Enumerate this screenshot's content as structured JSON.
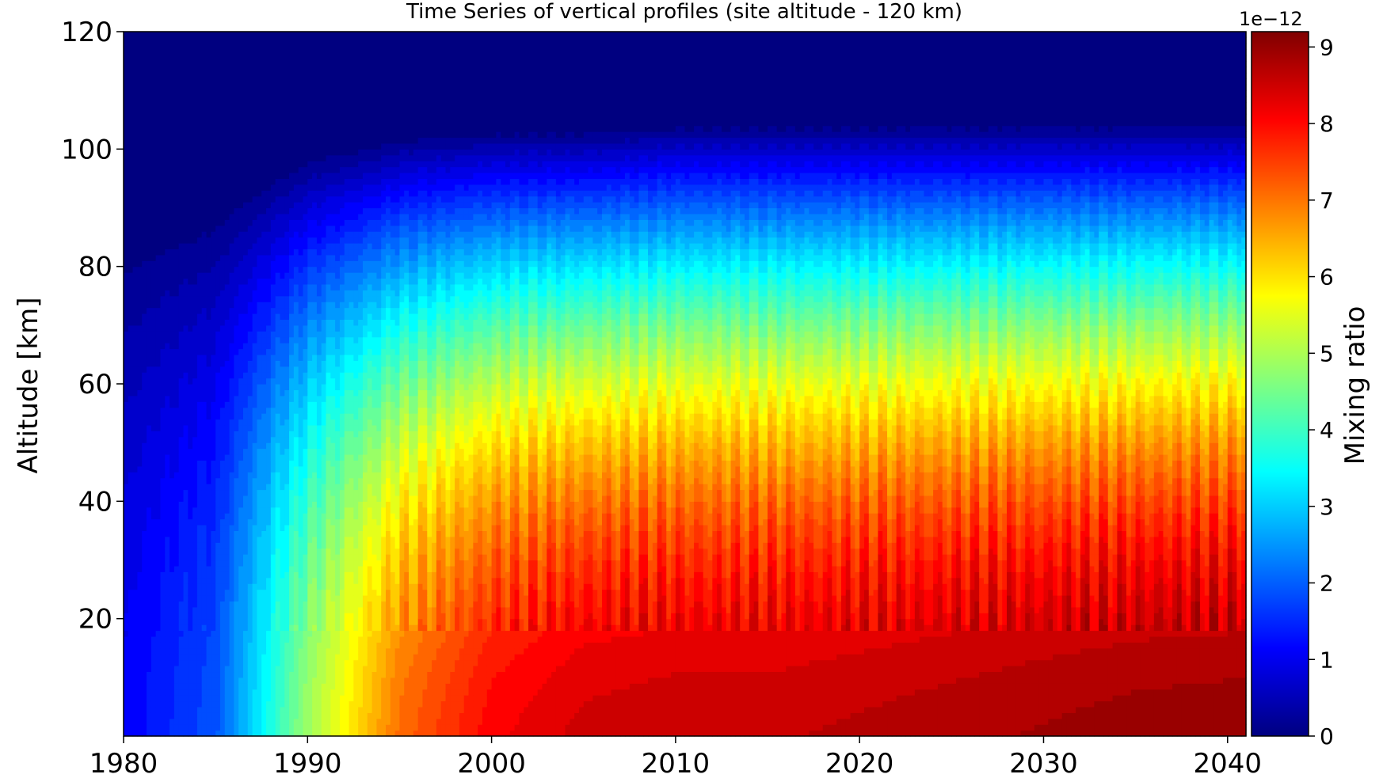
{
  "chart_data": {
    "type": "heatmap",
    "title": "Time Series of vertical profiles (site altitude - 120 km)",
    "xlabel": "",
    "ylabel": "Altitude [km]",
    "xlim": [
      1980,
      2041
    ],
    "ylim": [
      0,
      120
    ],
    "x_ticks": [
      1980,
      1990,
      2000,
      2010,
      2020,
      2030,
      2040
    ],
    "y_ticks": [
      20,
      40,
      60,
      80,
      100,
      120
    ],
    "colorbar": {
      "label": "Mixing ratio",
      "exponent_label": "1e−12",
      "scale": 1e-12,
      "range": [
        0,
        9.2
      ],
      "ticks": [
        0,
        1,
        2,
        3,
        4,
        5,
        6,
        7,
        8,
        9
      ],
      "colormap": "jet",
      "levels": 40
    },
    "time_profile": {
      "years": [
        1980,
        1985,
        1990,
        1995,
        2000,
        2005,
        2010,
        2015,
        2020,
        2025,
        2030,
        2035,
        2041
      ],
      "surface_value": [
        1.2,
        2.0,
        5.0,
        7.2,
        8.2,
        8.6,
        8.7,
        8.7,
        8.8,
        8.9,
        9.0,
        9.1,
        9.15
      ],
      "upper_edge_km": [
        88,
        92,
        100,
        103,
        104,
        104,
        105,
        105,
        105,
        105,
        105,
        105,
        105
      ]
    },
    "grid": false,
    "colors": {
      "background": "#ffffff",
      "frame": "#000000"
    }
  }
}
